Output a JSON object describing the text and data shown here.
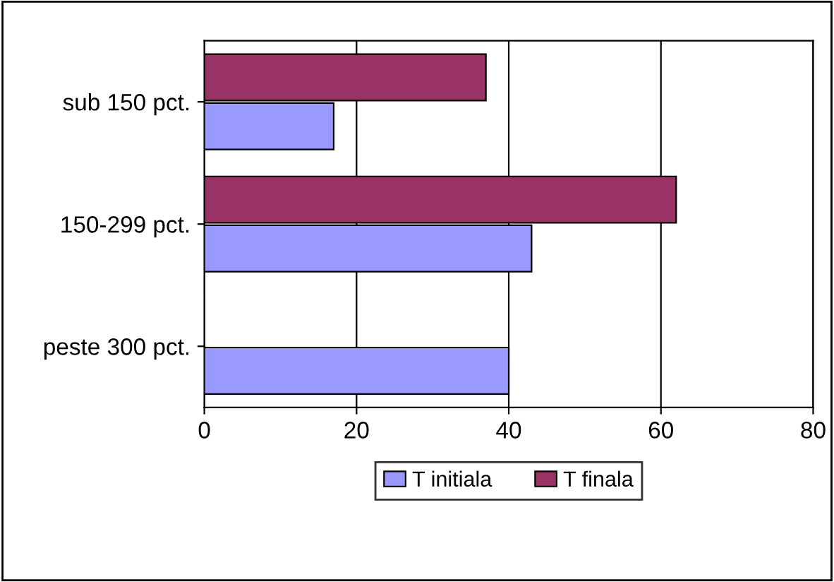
{
  "chart_data": {
    "type": "bar",
    "orientation": "horizontal",
    "categories": [
      "sub 150 pct.",
      "150-299 pct.",
      "peste 300 pct."
    ],
    "series": [
      {
        "name": "T initiala",
        "color": "#9999ff",
        "values": [
          17,
          43,
          40
        ]
      },
      {
        "name": "T finala",
        "color": "#993366",
        "values": [
          37,
          62,
          0
        ]
      }
    ],
    "xlim": [
      0,
      80
    ],
    "xticks": [
      0,
      20,
      40,
      60,
      80
    ],
    "grid": "x",
    "legend": "bottom"
  }
}
